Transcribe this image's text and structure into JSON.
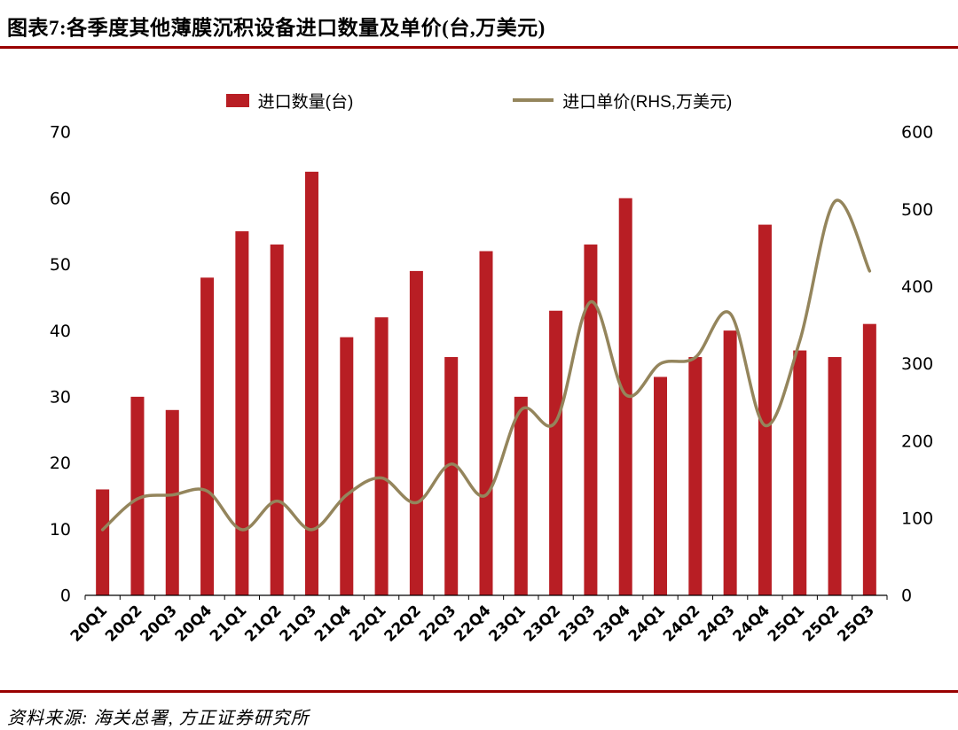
{
  "header": {
    "title": "图表7:各季度其他薄膜沉积设备进口数量及单价(台,万美元)"
  },
  "footer": {
    "source": "资料来源: 海关总署, 方正证券研究所"
  },
  "colors": {
    "bar": "#B81E24",
    "line": "#94855C",
    "rule": "#990000",
    "axis_text": "#000000"
  },
  "chart_data": {
    "type": "bar+line",
    "title": "各季度其他薄膜沉积设备进口数量及单价(台,万美元)",
    "categories": [
      "20Q1",
      "20Q2",
      "20Q3",
      "20Q4",
      "21Q1",
      "21Q2",
      "21Q3",
      "21Q4",
      "22Q1",
      "22Q2",
      "22Q3",
      "22Q4",
      "23Q1",
      "23Q2",
      "23Q3",
      "23Q4",
      "24Q1",
      "24Q2",
      "24Q3",
      "24Q4",
      "25Q1",
      "25Q2",
      "25Q3"
    ],
    "series": [
      {
        "name": "进口数量(台)",
        "type": "bar",
        "axis": "left",
        "values": [
          16,
          30,
          28,
          48,
          55,
          53,
          64,
          39,
          42,
          49,
          36,
          52,
          30,
          43,
          53,
          60,
          33,
          36,
          40,
          56,
          37,
          36,
          41
        ]
      },
      {
        "name": "进口单价(RHS,万美元)",
        "type": "line",
        "axis": "right",
        "values": [
          85,
          125,
          130,
          135,
          85,
          122,
          85,
          130,
          152,
          120,
          170,
          130,
          240,
          225,
          380,
          260,
          300,
          308,
          365,
          220,
          330,
          510,
          420
        ]
      }
    ],
    "left_axis": {
      "min": 0,
      "max": 70,
      "step": 10
    },
    "right_axis": {
      "min": 0,
      "max": 600,
      "step": 100
    },
    "legend_position": "top",
    "grid": false,
    "xlabel": "",
    "ylabel_left": "进口数量(台)",
    "ylabel_right": "进口单价(万美元)"
  }
}
